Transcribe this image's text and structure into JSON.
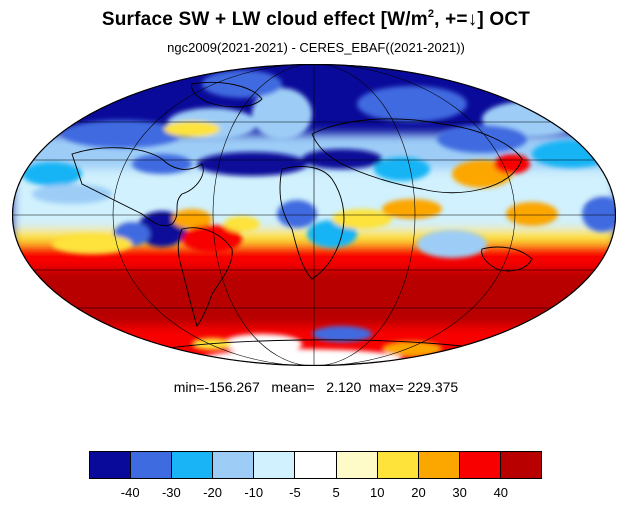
{
  "title": {
    "main": "Surface SW + LW cloud effect [W/m",
    "sup": "2",
    "rest": ", +=↓]  OCT"
  },
  "subtitle": "ngc2009(2021-2021) - CERES_EBAF((2021-2021))",
  "stats": "min=-156.267   mean=   2.120  max= 229.375",
  "colorbar": {
    "colors": [
      "#0a0a9a",
      "#3f6be0",
      "#19b4f5",
      "#9dcdf7",
      "#d0f1fd",
      "#ffffff",
      "#fffbc8",
      "#fde33a",
      "#fca600",
      "#f80000",
      "#b80000"
    ],
    "ticks": [
      "-40",
      "-30",
      "-20",
      "-10",
      "-5",
      "5",
      "10",
      "20",
      "30",
      "40"
    ]
  },
  "map": {
    "projection": "mollweide"
  }
}
